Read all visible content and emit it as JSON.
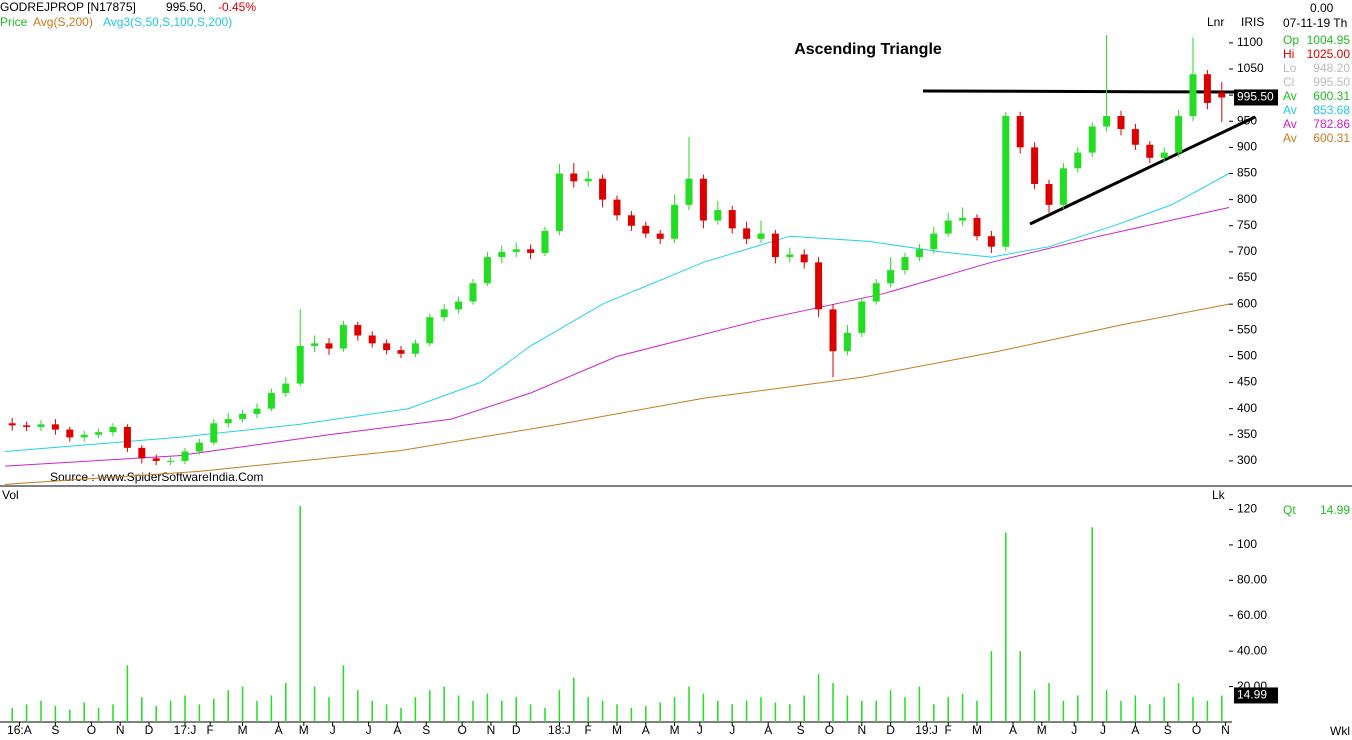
{
  "chart_data": [
    {
      "type": "candlestick",
      "title": "Ascending Triangle",
      "up_color": "#22dd22",
      "down_color": "#dd0000",
      "x": [
        1,
        3,
        5,
        7,
        9,
        11,
        13,
        15,
        17,
        19,
        21,
        23,
        25,
        27,
        29,
        31,
        33,
        35,
        37,
        39,
        41,
        43,
        45,
        47,
        49,
        51,
        53,
        55,
        57,
        59,
        61,
        63,
        65,
        67,
        69,
        71,
        73,
        75,
        77,
        79,
        81,
        83,
        85,
        87,
        89,
        91,
        93,
        95,
        97,
        99,
        101,
        103,
        105,
        107,
        109,
        111,
        113,
        115,
        117,
        119,
        121,
        123,
        125,
        127,
        129,
        131,
        133,
        135,
        137,
        139,
        141,
        143,
        145,
        147,
        149,
        151,
        153,
        155,
        157,
        159,
        161,
        163,
        165,
        167,
        169
      ],
      "open": [
        372,
        368,
        365,
        370,
        360,
        345,
        350,
        355,
        365,
        325,
        305,
        300,
        300,
        318,
        335,
        372,
        380,
        390,
        400,
        430,
        448,
        520,
        525,
        515,
        560,
        540,
        525,
        512,
        505,
        525,
        575,
        590,
        605,
        640,
        690,
        700,
        705,
        698,
        740,
        850,
        835,
        840,
        800,
        770,
        750,
        735,
        725,
        790,
        840,
        760,
        780,
        745,
        725,
        735,
        690,
        695,
        680,
        590,
        510,
        545,
        605,
        640,
        665,
        690,
        705,
        735,
        760,
        765,
        730,
        710,
        960,
        900,
        830,
        790,
        860,
        890,
        940,
        960,
        935,
        905,
        880,
        890,
        960,
        1040,
        1004.95
      ],
      "high": [
        382,
        375,
        378,
        380,
        365,
        358,
        362,
        372,
        370,
        330,
        312,
        308,
        325,
        342,
        380,
        392,
        398,
        410,
        438,
        460,
        590,
        540,
        535,
        568,
        566,
        548,
        532,
        520,
        532,
        582,
        600,
        615,
        648,
        700,
        712,
        718,
        714,
        748,
        868,
        870,
        855,
        848,
        808,
        778,
        758,
        742,
        810,
        920,
        848,
        798,
        788,
        758,
        760,
        742,
        708,
        705,
        690,
        600,
        560,
        612,
        648,
        690,
        698,
        715,
        748,
        775,
        785,
        772,
        740,
        968,
        968,
        910,
        838,
        870,
        900,
        948,
        1115,
        970,
        945,
        912,
        900,
        972,
        1110,
        1048,
        1025
      ],
      "low": [
        358,
        357,
        357,
        350,
        337,
        337,
        344,
        347,
        317,
        295,
        292,
        292,
        294,
        312,
        330,
        364,
        374,
        382,
        395,
        422,
        443,
        508,
        503,
        509,
        530,
        517,
        504,
        497,
        499,
        520,
        567,
        582,
        599,
        635,
        678,
        690,
        686,
        692,
        732,
        823,
        825,
        785,
        760,
        740,
        727,
        715,
        717,
        780,
        745,
        752,
        735,
        715,
        717,
        678,
        680,
        668,
        575,
        460,
        502,
        537,
        599,
        632,
        657,
        682,
        697,
        729,
        750,
        722,
        698,
        702,
        888,
        820,
        775,
        782,
        852,
        882,
        930,
        923,
        895,
        870,
        872,
        882,
        950,
        973,
        948.2
      ],
      "close": [
        368,
        365,
        370,
        360,
        345,
        350,
        355,
        365,
        325,
        305,
        300,
        300,
        318,
        335,
        372,
        380,
        390,
        400,
        430,
        448,
        520,
        525,
        515,
        560,
        540,
        525,
        512,
        505,
        525,
        575,
        590,
        605,
        640,
        690,
        700,
        705,
        698,
        740,
        850,
        835,
        840,
        800,
        770,
        750,
        735,
        725,
        790,
        840,
        760,
        780,
        745,
        725,
        735,
        690,
        695,
        680,
        590,
        510,
        545,
        605,
        640,
        665,
        690,
        705,
        735,
        760,
        765,
        730,
        710,
        960,
        900,
        830,
        790,
        860,
        890,
        940,
        960,
        935,
        905,
        880,
        890,
        960,
        1040,
        985,
        995.5
      ],
      "series": [
        {
          "color": "#22d3e6",
          "x": [
            0,
            24,
            41,
            56,
            66,
            73,
            83,
            97,
            109,
            120,
            130,
            137,
            145,
            154,
            162,
            170
          ],
          "values": [
            318,
            345,
            370,
            400,
            450,
            520,
            600,
            680,
            730,
            720,
            700,
            690,
            710,
            750,
            790,
            850
          ]
        },
        {
          "color": "#cc22cc",
          "x": [
            0,
            24,
            45,
            62,
            73,
            85,
            105,
            122,
            137,
            152,
            170
          ],
          "values": [
            290,
            310,
            350,
            380,
            430,
            500,
            570,
            620,
            680,
            730,
            785
          ]
        },
        {
          "color": "#c87a1e",
          "x": [
            0,
            27,
            55,
            77,
            97,
            119,
            138,
            155,
            170
          ],
          "values": [
            255,
            280,
            320,
            370,
            420,
            460,
            510,
            560,
            600
          ]
        }
      ],
      "xlim": [
        0,
        170
      ],
      "xticks": [
        {
          "value": 2,
          "label": "16:A"
        },
        {
          "value": 7,
          "label": "S"
        },
        {
          "value": 12,
          "label": "O"
        },
        {
          "value": 16,
          "label": "N"
        },
        {
          "value": 20,
          "label": "D"
        },
        {
          "value": 25,
          "label": "17:J"
        },
        {
          "value": 28.5,
          "label": "F"
        },
        {
          "value": 33,
          "label": "M"
        },
        {
          "value": 38,
          "label": "A"
        },
        {
          "value": 41.5,
          "label": "M"
        },
        {
          "value": 45.5,
          "label": "J"
        },
        {
          "value": 50.5,
          "label": "J"
        },
        {
          "value": 54.5,
          "label": "A"
        },
        {
          "value": 58.5,
          "label": "S"
        },
        {
          "value": 63.5,
          "label": "O"
        },
        {
          "value": 67.5,
          "label": "N"
        },
        {
          "value": 71,
          "label": "D"
        },
        {
          "value": 77,
          "label": "18:J"
        },
        {
          "value": 81,
          "label": "F"
        },
        {
          "value": 85,
          "label": "M"
        },
        {
          "value": 89,
          "label": "A"
        },
        {
          "value": 93,
          "label": "M"
        },
        {
          "value": 96.5,
          "label": "J"
        },
        {
          "value": 101,
          "label": "J"
        },
        {
          "value": 106,
          "label": "A"
        },
        {
          "value": 110.5,
          "label": "S"
        },
        {
          "value": 114.5,
          "label": "O"
        },
        {
          "value": 119,
          "label": "N"
        },
        {
          "value": 123,
          "label": "D"
        },
        {
          "value": 128,
          "label": "19:J"
        },
        {
          "value": 131,
          "label": "F"
        },
        {
          "value": 135,
          "label": "M"
        },
        {
          "value": 140,
          "label": "A"
        },
        {
          "value": 144,
          "label": "M"
        },
        {
          "value": 148.5,
          "label": "J"
        },
        {
          "value": 152.5,
          "label": "J"
        },
        {
          "value": 157,
          "label": "A"
        },
        {
          "value": 161.5,
          "label": "S"
        },
        {
          "value": 165.5,
          "label": "O"
        },
        {
          "value": 169.5,
          "label": "N"
        }
      ],
      "ylim": [
        252,
        1182
      ],
      "yticks": [
        300,
        350,
        400,
        450,
        500,
        550,
        600,
        650,
        700,
        750,
        800,
        850,
        900,
        950,
        1000,
        1050,
        1100
      ]
    },
    {
      "type": "bar",
      "color": "#22dd22",
      "x": [
        1,
        3,
        5,
        7,
        9,
        11,
        13,
        15,
        17,
        19,
        21,
        23,
        25,
        27,
        29,
        31,
        33,
        35,
        37,
        39,
        41,
        43,
        45,
        47,
        49,
        51,
        53,
        55,
        57,
        59,
        61,
        63,
        65,
        67,
        69,
        71,
        73,
        75,
        77,
        79,
        81,
        83,
        85,
        87,
        89,
        91,
        93,
        95,
        97,
        99,
        101,
        103,
        105,
        107,
        109,
        111,
        113,
        115,
        117,
        119,
        121,
        123,
        125,
        127,
        129,
        131,
        133,
        135,
        137,
        139,
        141,
        143,
        145,
        147,
        149,
        151,
        153,
        155,
        157,
        159,
        161,
        163,
        165,
        167,
        169
      ],
      "values": [
        8,
        10,
        12,
        9,
        7,
        11,
        8,
        10,
        32,
        14,
        9,
        12,
        15,
        10,
        13,
        18,
        20,
        12,
        15,
        22,
        122,
        20,
        14,
        32,
        18,
        12,
        10,
        8,
        14,
        18,
        20,
        15,
        12,
        16,
        12,
        14,
        10,
        8,
        18,
        25,
        14,
        12,
        10,
        8,
        9,
        11,
        14,
        20,
        16,
        12,
        10,
        12,
        14,
        11,
        10,
        15,
        27,
        22,
        15,
        12,
        12,
        18,
        14,
        20,
        10,
        14,
        16,
        12,
        40,
        107,
        40,
        18,
        22,
        12,
        15,
        110,
        18,
        12,
        15,
        10,
        14,
        22,
        14,
        12,
        14.99
      ],
      "xlim": [
        0,
        170
      ],
      "ylim": [
        0,
        131
      ],
      "yticks": [
        {
          "value": 20,
          "label": "20.00"
        },
        {
          "value": 40,
          "label": "40.00"
        },
        {
          "value": 60,
          "label": "60.00"
        },
        {
          "value": 80,
          "label": "80.00"
        },
        100,
        120
      ]
    }
  ],
  "ui": {
    "symbol": "GODREJPROP [N17875]",
    "price": "995.50,",
    "change": "-0.45%",
    "legend": [
      "Price",
      "Avg(S,200)",
      "Avg3(S,50,S,100,S,200)"
    ],
    "source": "Source : www.SpiderSoftwareIndia.Com",
    "scale_mode": "Lnr",
    "study": "IRIS",
    "volume_label": "Vol",
    "volume_unit": "Lk",
    "period": "Wkl",
    "last_price": "995.50",
    "volume_box": "14.99",
    "info_top": "0.00",
    "info_date": "07-11-19 Th",
    "info_rows": [
      {
        "label": "Op",
        "value": "1004.95",
        "color": "#22bb22"
      },
      {
        "label": "Hi",
        "value": "1025.00",
        "color": "#dd0000"
      },
      {
        "label": "Lo",
        "value": "948.20",
        "color": "#bbbbbb"
      },
      {
        "label": "Cl",
        "value": "995.50",
        "color": "#bbbbbb"
      },
      {
        "label": "Av",
        "value": "600.31",
        "color": "#22bb22"
      },
      {
        "label": "Av",
        "value": "853.68",
        "color": "#22c8e0"
      },
      {
        "label": "Av",
        "value": "782.86",
        "color": "#cc22cc"
      },
      {
        "label": "Av",
        "value": "600.31",
        "color": "#c87a1e"
      }
    ],
    "qty": {
      "label": "Qt",
      "value": "14.99",
      "color": "#22bb22"
    }
  }
}
